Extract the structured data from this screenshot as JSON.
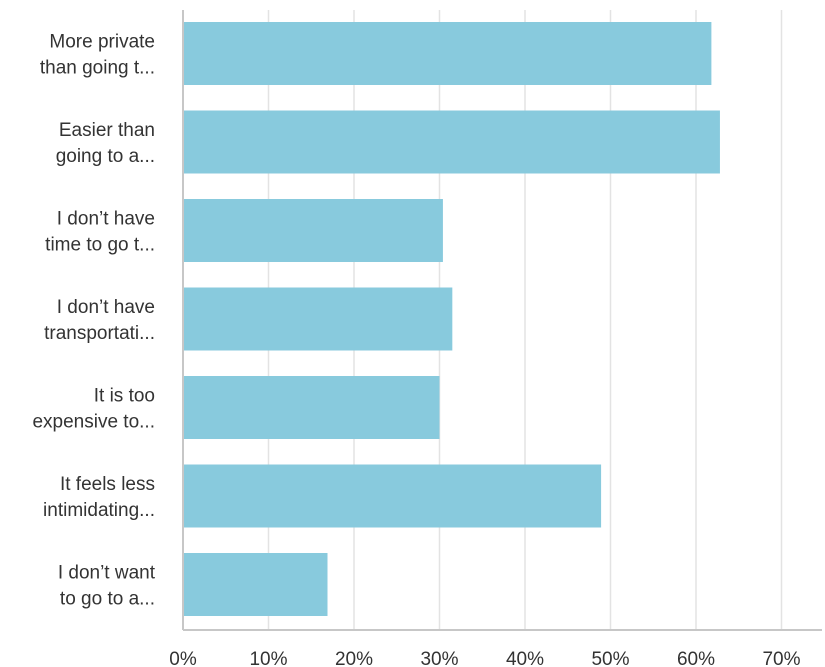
{
  "chart_data": {
    "type": "bar",
    "orientation": "horizontal",
    "categories": [
      [
        "More private",
        "than going t..."
      ],
      [
        "Easier than",
        "going to a..."
      ],
      [
        "I don’t have",
        "time to go t..."
      ],
      [
        "I don’t have",
        "transportati..."
      ],
      [
        "It is too",
        "expensive to..."
      ],
      [
        "It feels less",
        "intimidating..."
      ],
      [
        "I don’t want",
        "to go to a..."
      ]
    ],
    "values": [
      61.8,
      62.8,
      30.4,
      31.5,
      30.0,
      48.9,
      16.9
    ],
    "value_unit": "%",
    "xlim": [
      0,
      75
    ],
    "xticks": [
      0,
      10,
      20,
      30,
      40,
      50,
      60,
      70
    ],
    "xtick_labels": [
      "0%",
      "10%",
      "20%",
      "30%",
      "40%",
      "50%",
      "60%",
      "70%"
    ],
    "title": "",
    "xlabel": "",
    "ylabel": "",
    "grid": "vertical",
    "bar_color": "#88cadd"
  }
}
